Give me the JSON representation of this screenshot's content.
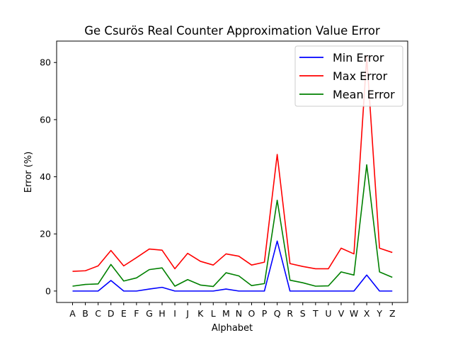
{
  "chart_data": {
    "type": "line",
    "title": "Ge Csurös Real Counter Approximation Value Error",
    "xlabel": "Alphabet",
    "ylabel": "Error (%)",
    "categories": [
      "A",
      "B",
      "C",
      "D",
      "E",
      "F",
      "G",
      "H",
      "I",
      "J",
      "K",
      "L",
      "M",
      "N",
      "O",
      "P",
      "Q",
      "R",
      "S",
      "T",
      "U",
      "V",
      "W",
      "X",
      "Y",
      "Z"
    ],
    "ylim": [
      -4,
      87.5
    ],
    "yticks": [
      0,
      20,
      40,
      60,
      80
    ],
    "grid": false,
    "legend_position": "top-right",
    "series": [
      {
        "name": "Min Error",
        "color": "#0000ff",
        "values": [
          0,
          0,
          0,
          3.7,
          0,
          0,
          0.7,
          1.3,
          0,
          0,
          0,
          0,
          0.7,
          0,
          0,
          0,
          17.5,
          0,
          0,
          0,
          0,
          0,
          0,
          5.6,
          0,
          0
        ]
      },
      {
        "name": "Max Error",
        "color": "#ff0000",
        "values": [
          6.9,
          7.1,
          8.8,
          14.2,
          8.8,
          11.7,
          14.7,
          14.3,
          7.8,
          13.2,
          10.4,
          9.1,
          13.0,
          12.2,
          9.1,
          10.1,
          47.8,
          9.6,
          8.6,
          7.8,
          7.8,
          15.0,
          13.0,
          82.0,
          15.0,
          13.5
        ]
      },
      {
        "name": "Mean Error",
        "color": "#008000",
        "values": [
          1.7,
          2.3,
          2.5,
          9.3,
          3.5,
          4.6,
          7.5,
          8.1,
          1.7,
          4.0,
          2.1,
          1.6,
          6.4,
          5.3,
          1.9,
          2.6,
          31.8,
          3.8,
          2.9,
          1.7,
          1.8,
          6.7,
          5.6,
          44.2,
          6.7,
          4.8
        ]
      }
    ]
  }
}
